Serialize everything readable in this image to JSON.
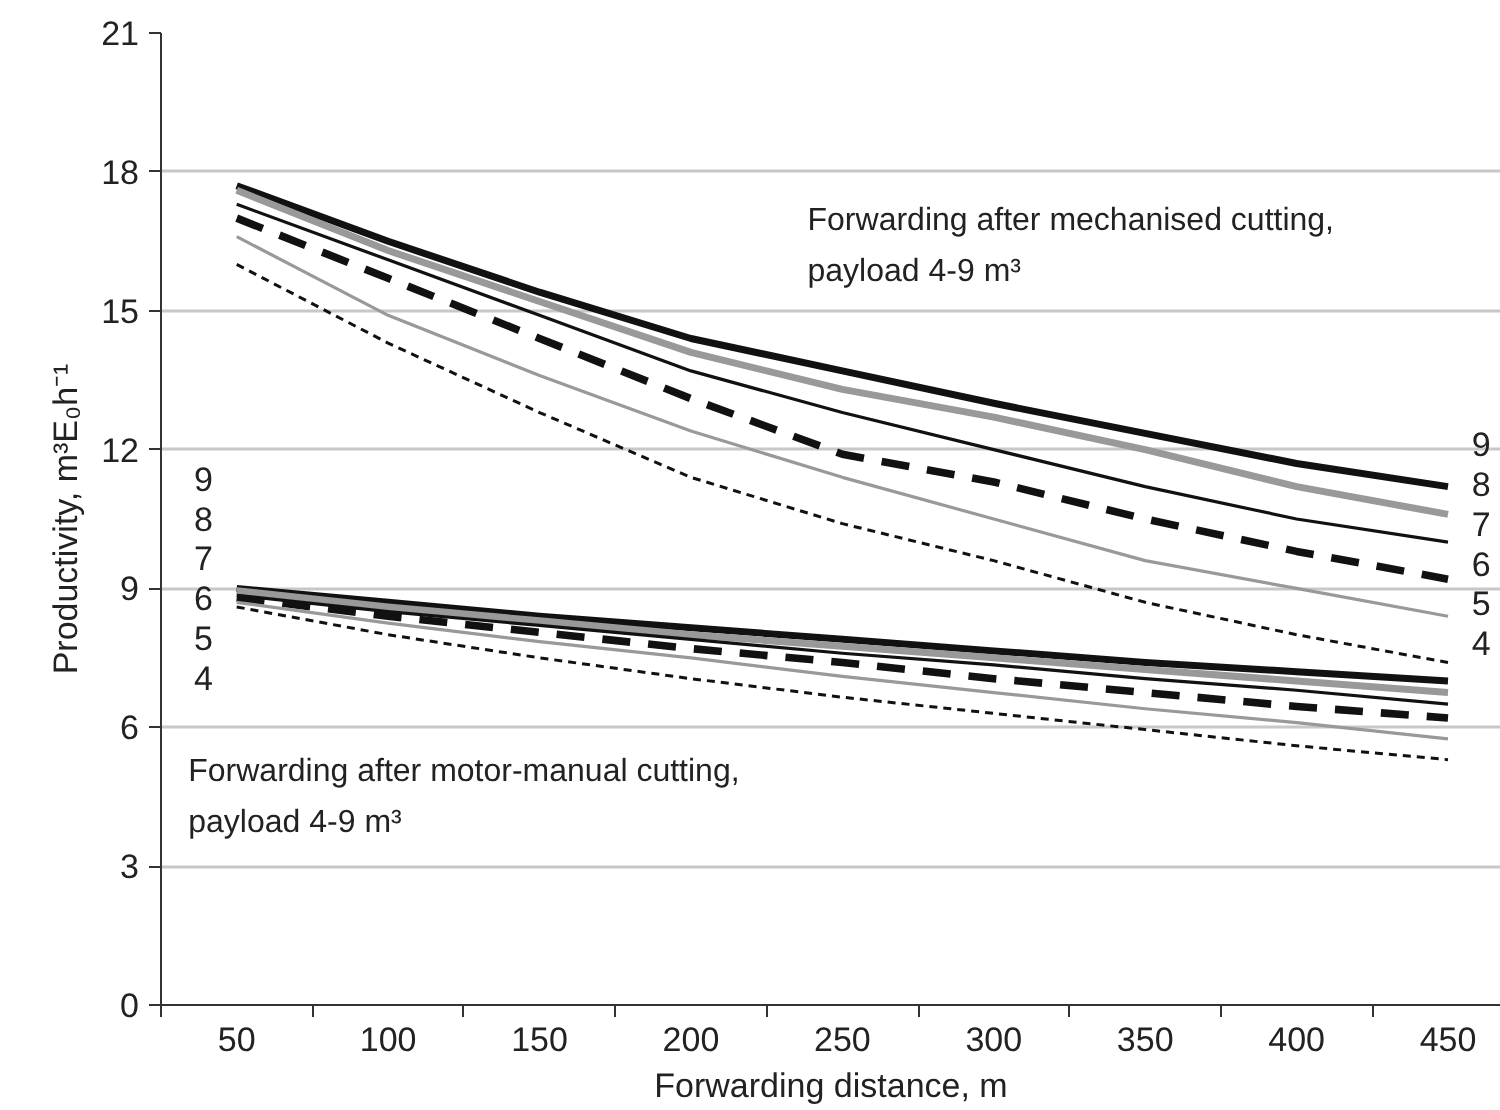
{
  "chart_data": {
    "type": "line",
    "xlabel": "Forwarding distance, m",
    "ylabel": "Productivity, m³E₀h⁻¹",
    "categories": [
      "50",
      "100",
      "150",
      "200",
      "250",
      "300",
      "350",
      "400",
      "450"
    ],
    "ylim": [
      0,
      21
    ],
    "yticks": [
      0,
      3,
      6,
      9,
      12,
      15,
      18,
      21
    ],
    "grid": "y",
    "marker": "none",
    "annotations": [
      "Forwarding after mechanised cutting,\npayload 4-9 m³",
      "Forwarding after motor-manual cutting,\npayload 4-9 m³"
    ],
    "series": [
      {
        "name": "9",
        "color": "#111111",
        "line_style": "solid",
        "values": [
          17.7,
          16.5,
          15.4,
          14.4,
          13.7,
          13.0,
          12.35,
          11.7,
          11.2
        ]
      },
      {
        "name": "8",
        "color": "#999999",
        "line_style": "solid",
        "values": [
          17.6,
          16.3,
          15.2,
          14.1,
          13.3,
          12.7,
          12.0,
          11.2,
          10.6
        ]
      },
      {
        "name": "7",
        "color": "#111111",
        "line_style": "solid",
        "values": [
          17.3,
          16.1,
          14.9,
          13.7,
          12.8,
          12.0,
          11.2,
          10.5,
          10.0
        ]
      },
      {
        "name": "6",
        "color": "#111111",
        "line_style": "dashed",
        "values": [
          17.0,
          15.7,
          14.4,
          13.1,
          11.9,
          11.3,
          10.5,
          9.8,
          9.2
        ]
      },
      {
        "name": "5",
        "color": "#999999",
        "line_style": "solid",
        "values": [
          16.6,
          14.9,
          13.6,
          12.4,
          11.4,
          10.5,
          9.6,
          9.0,
          8.4
        ]
      },
      {
        "name": "4",
        "color": "#111111",
        "line_style": "dotted",
        "values": [
          16.0,
          14.3,
          12.8,
          11.4,
          10.4,
          9.6,
          8.7,
          8.0,
          7.4
        ]
      },
      {
        "name": "9",
        "color": "#111111",
        "line_style": "solid",
        "values": [
          9.0,
          8.7,
          8.4,
          8.15,
          7.9,
          7.65,
          7.4,
          7.2,
          7.0
        ]
      },
      {
        "name": "8",
        "color": "#999999",
        "line_style": "solid",
        "values": [
          8.95,
          8.6,
          8.3,
          8.0,
          7.75,
          7.5,
          7.25,
          7.0,
          6.75
        ]
      },
      {
        "name": "7",
        "color": "#111111",
        "line_style": "solid",
        "values": [
          8.85,
          8.5,
          8.2,
          7.9,
          7.6,
          7.35,
          7.05,
          6.8,
          6.5
        ]
      },
      {
        "name": "6",
        "color": "#111111",
        "line_style": "dashed",
        "values": [
          8.8,
          8.4,
          8.05,
          7.7,
          7.4,
          7.05,
          6.75,
          6.45,
          6.2
        ]
      },
      {
        "name": "5",
        "color": "#999999",
        "line_style": "solid",
        "values": [
          8.7,
          8.25,
          7.85,
          7.5,
          7.1,
          6.75,
          6.4,
          6.1,
          5.75
        ]
      },
      {
        "name": "4",
        "color": "#111111",
        "line_style": "dotted",
        "values": [
          8.6,
          8.0,
          7.5,
          7.05,
          6.65,
          6.3,
          5.95,
          5.6,
          5.3
        ]
      }
    ]
  }
}
